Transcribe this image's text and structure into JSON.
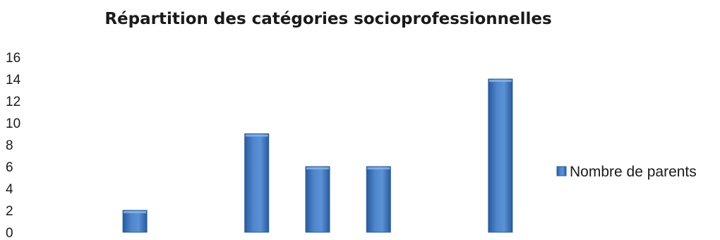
{
  "chart_data": {
    "type": "bar",
    "title": "Répartition des catégories socioprofessionnelles",
    "categories": [
      "",
      "",
      "",
      "",
      "",
      "",
      ""
    ],
    "series": [
      {
        "name": "Nombre de parents",
        "values": [
          2,
          0,
          9,
          6,
          6,
          0,
          14
        ],
        "color": "#4a7ec4"
      }
    ],
    "ylim": [
      0,
      16
    ],
    "yticks": [
      0,
      2,
      4,
      6,
      8,
      10,
      12,
      14,
      16
    ],
    "grid": false,
    "legend": "right"
  }
}
